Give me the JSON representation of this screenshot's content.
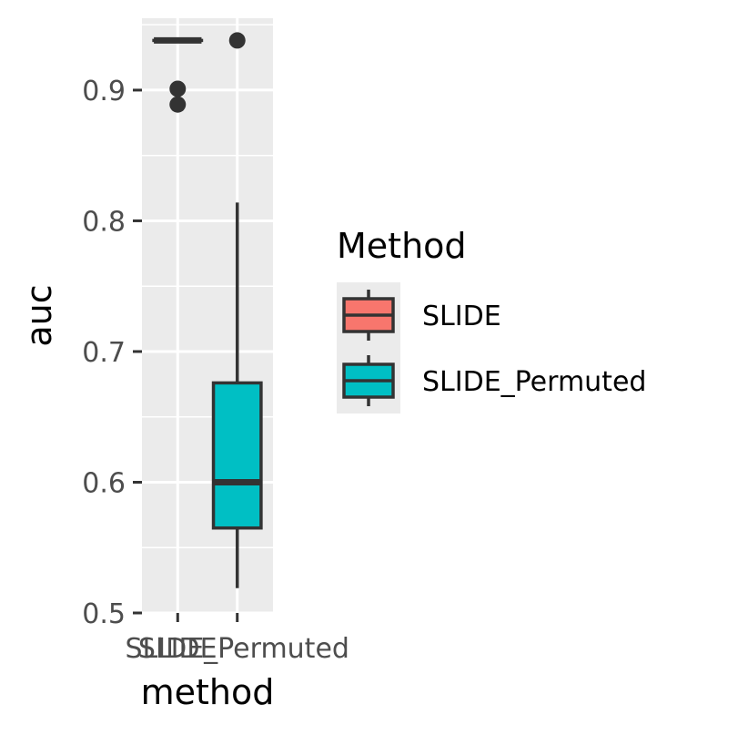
{
  "chart_data": {
    "type": "boxplot",
    "xlabel": "method",
    "ylabel": "auc",
    "ylim": [
      0.5,
      0.955
    ],
    "yticks": [
      0.5,
      0.6,
      0.7,
      0.8,
      0.9
    ],
    "ytick_labels": [
      "0.5",
      "0.6",
      "0.7",
      "0.8",
      "0.9"
    ],
    "grid": true,
    "categories": [
      "SLIDE",
      "SLIDE_Permuted"
    ],
    "series": [
      {
        "name": "SLIDE",
        "color": "#F8766D",
        "lower_whisker": 0.938,
        "q1": 0.938,
        "median": 0.938,
        "q3": 0.938,
        "upper_whisker": 0.938,
        "outliers": [
          0.901,
          0.889
        ]
      },
      {
        "name": "SLIDE_Permuted",
        "color": "#00BFC4",
        "lower_whisker": 0.519,
        "q1": 0.565,
        "median": 0.6,
        "q3": 0.676,
        "upper_whisker": 0.814,
        "outliers": [
          0.938
        ]
      }
    ],
    "legend": {
      "title": "Method",
      "position": "right",
      "entries": [
        "SLIDE",
        "SLIDE_Permuted"
      ]
    }
  }
}
